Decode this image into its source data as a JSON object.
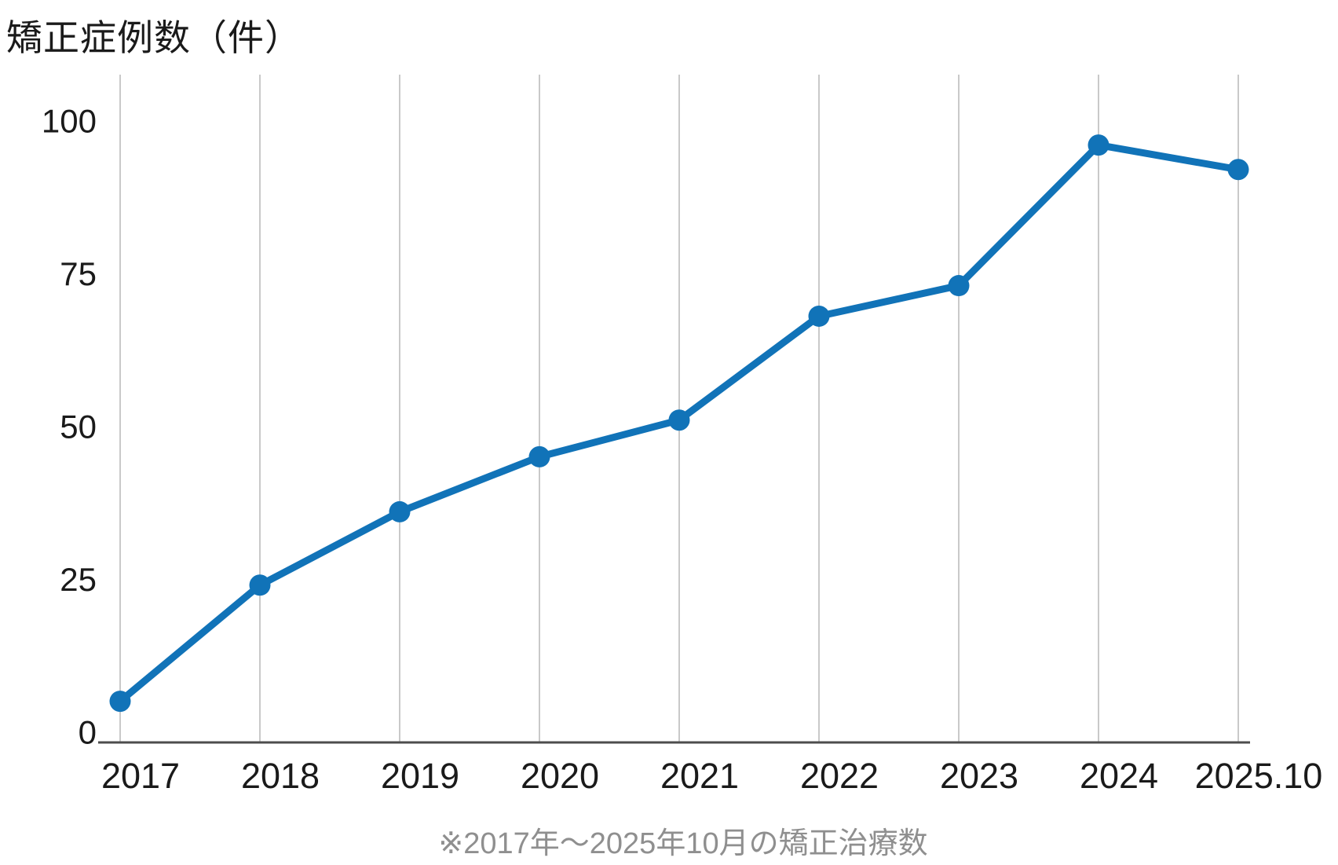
{
  "title": "矯正症例数（件）",
  "caption": "※2017年～2025年10月の矯正治療数",
  "chart_data": {
    "type": "line",
    "title": "矯正症例数（件）",
    "categories": [
      "2017",
      "2018",
      "2019",
      "2020",
      "2021",
      "2022",
      "2023",
      "2024",
      "2025.10"
    ],
    "values": [
      5,
      24,
      36,
      45,
      51,
      68,
      73,
      96,
      92
    ],
    "ylabel": "矯正症例数（件）",
    "xlabel": "",
    "ylim": [
      0,
      100
    ],
    "yticks": [
      0,
      25,
      50,
      75,
      100
    ],
    "legend": "none",
    "grid": "vertical-only",
    "annotation": "※2017年～2025年10月の矯正治療数",
    "colors": {
      "line": "#1173b8",
      "marker": "#1173b8",
      "gridline": "#c9c9c9",
      "axis_line": "#4d4d4d",
      "tick_label": "#1a1a1a",
      "title_text": "#1a1a1a",
      "caption_text": "#8f8f8f",
      "background": "#ffffff"
    }
  }
}
